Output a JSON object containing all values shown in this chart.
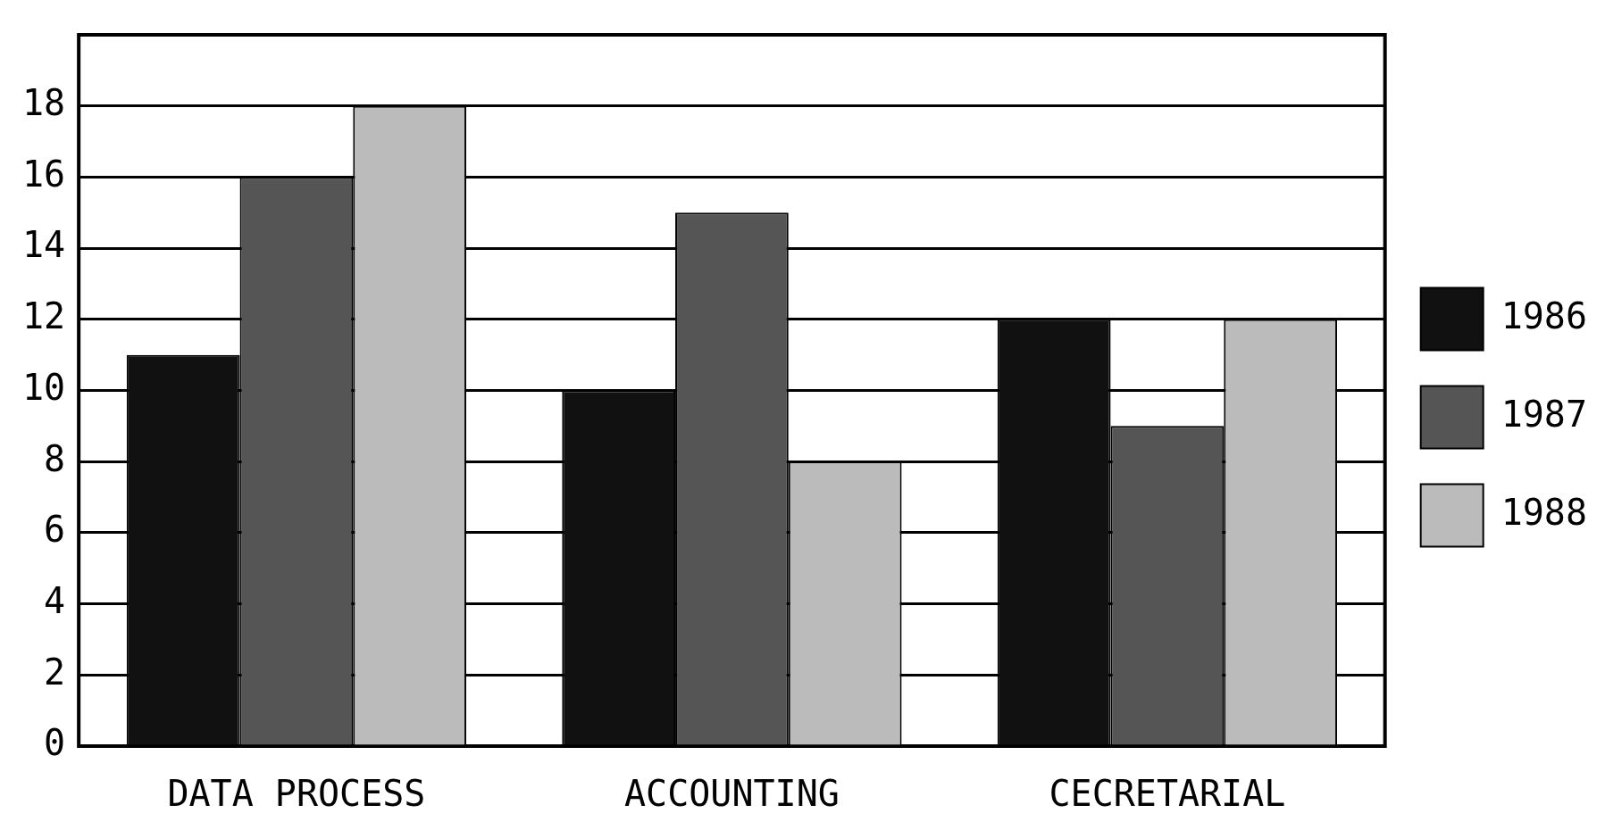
{
  "chart_data": {
    "type": "bar",
    "categories": [
      "DATA PROCESS",
      "ACCOUNTING",
      "CECRETARIAL"
    ],
    "series": [
      {
        "name": "1986",
        "color": "#111111",
        "values": [
          11,
          10,
          12
        ]
      },
      {
        "name": "1987",
        "color": "#555555",
        "values": [
          16,
          15,
          9
        ]
      },
      {
        "name": "1988",
        "color": "#bbbbbb",
        "values": [
          18,
          8,
          12
        ]
      }
    ],
    "ylim": [
      0,
      20
    ],
    "yticks": [
      0,
      2,
      4,
      6,
      8,
      10,
      12,
      14,
      16,
      18
    ],
    "grid": "y",
    "legend": "right"
  }
}
